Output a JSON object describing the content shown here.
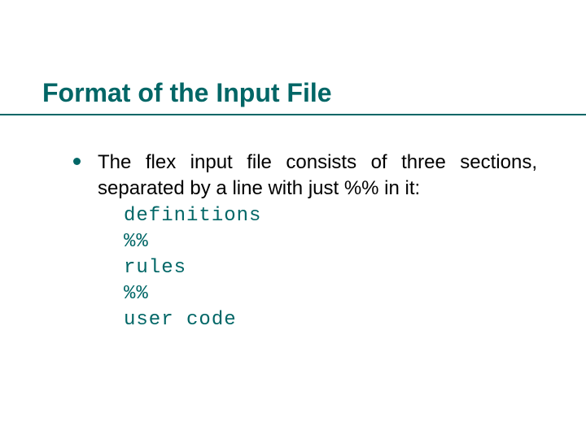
{
  "slide": {
    "title": "Format of the Input File",
    "title_color": "#006666",
    "title_fontsize": 32,
    "underline_color": "#006666",
    "background_color": "#ffffff"
  },
  "bullet": {
    "marker_color": "#006666",
    "text": "The  flex  input  file  consists of three sections, separated by a line with just %% in it:",
    "text_color": "#000000",
    "text_fontsize": 24
  },
  "code": {
    "color": "#006666",
    "font": "Courier New",
    "fontsize": 24,
    "lines": [
      "definitions",
      "%%",
      "rules",
      "%%",
      "user code"
    ]
  }
}
